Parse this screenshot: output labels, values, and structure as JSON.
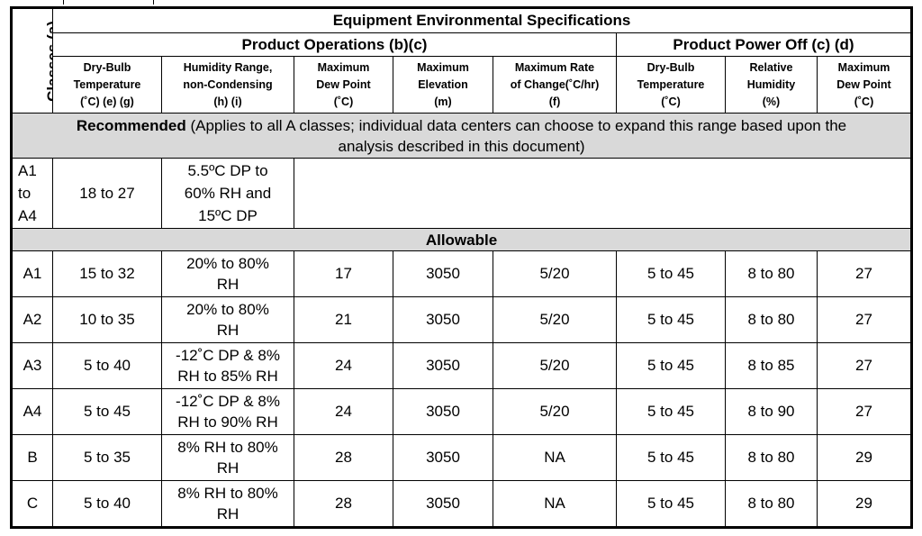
{
  "table": {
    "title": "Equipment Environmental Specifications",
    "classes_label": "Classes (a)",
    "groups": {
      "operations": "Product Operations (b)(c)",
      "power_off": "Product Power Off (c) (d)"
    },
    "columns": {
      "dry_bulb": {
        "line1": "Dry-Bulb",
        "line2": "Temperature",
        "line3": "(˚C)    (e) (g)"
      },
      "humidity": {
        "line1": "Humidity Range,",
        "line2": "non-Condensing",
        "line3": "(h) (i)"
      },
      "max_dew": {
        "line1": "Maximum",
        "line2": "Dew Point",
        "line3": "(˚C)"
      },
      "max_elev": {
        "line1": "Maximum",
        "line2": "Elevation",
        "line3": "(m)"
      },
      "max_rate": {
        "line1": "Maximum  Rate",
        "line2": "of Change(˚C/hr)",
        "line3": "(f)"
      },
      "off_dry_bulb": {
        "line1": "Dry-Bulb",
        "line2": "Temperature",
        "line3": "(˚C)"
      },
      "off_rh": {
        "line1": "Relative",
        "line2": "Humidity",
        "line3": "(%)"
      },
      "off_dew": {
        "line1": "Maximum",
        "line2": "Dew Point",
        "line3": "(˚C)"
      }
    },
    "recommended": {
      "label": "Recommended",
      "text_line1": " (Applies to all A classes; individual data centers can choose to expand this range based upon the",
      "text_line2": "analysis described in this document)",
      "class_line1": "A1",
      "class_line2": "to",
      "class_line3": "A4",
      "dry_bulb": "18 to 27",
      "humidity_line1": "5.5ºC DP to",
      "humidity_line2": "60% RH and",
      "humidity_line3": "15ºC DP"
    },
    "allowable_label": "Allowable",
    "rows": [
      {
        "cls": "A1",
        "dry_bulb": "15 to 32",
        "hum1": "20% to 80%",
        "hum2": "RH",
        "dew": "17",
        "elev": "3050",
        "rate": "5/20",
        "off_db": "5 to 45",
        "off_rh": "8 to 80",
        "off_dew": "27"
      },
      {
        "cls": "A2",
        "dry_bulb": "10 to 35",
        "hum1": "20% to 80%",
        "hum2": "RH",
        "dew": "21",
        "elev": "3050",
        "rate": "5/20",
        "off_db": "5 to 45",
        "off_rh": "8 to 80",
        "off_dew": "27"
      },
      {
        "cls": "A3",
        "dry_bulb": "5 to 40",
        "hum1": "-12˚C DP & 8%",
        "hum2": "RH to 85% RH",
        "dew": "24",
        "elev": "3050",
        "rate": "5/20",
        "off_db": "5 to 45",
        "off_rh": "8 to 85",
        "off_dew": "27"
      },
      {
        "cls": "A4",
        "dry_bulb": "5 to 45",
        "hum1": "-12˚C DP & 8%",
        "hum2": "RH to 90% RH",
        "dew": "24",
        "elev": "3050",
        "rate": "5/20",
        "off_db": "5 to 45",
        "off_rh": "8 to 90",
        "off_dew": "27"
      },
      {
        "cls": "B",
        "dry_bulb": "5 to 35",
        "hum1": "8% RH to 80%",
        "hum2": "RH",
        "dew": "28",
        "elev": "3050",
        "rate": "NA",
        "off_db": "5 to 45",
        "off_rh": "8 to 80",
        "off_dew": "29"
      },
      {
        "cls": "C",
        "dry_bulb": "5 to 40",
        "hum1": "8% RH to 80%",
        "hum2": "RH",
        "dew": "28",
        "elev": "3050",
        "rate": "NA",
        "off_db": "5 to 45",
        "off_rh": "8 to 80",
        "off_dew": "29"
      }
    ]
  }
}
